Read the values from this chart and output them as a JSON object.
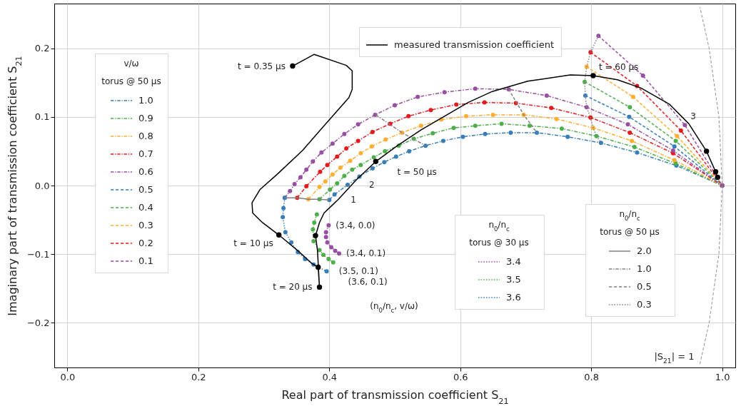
{
  "chart_data": {
    "type": "line",
    "xlabel": "Real part of transmission coefficient S$_{21}$",
    "ylabel": "Imaginary part of transmission coefficient S$_{21}$",
    "legend_title": "v/ω",
    "legend": "top left",
    "grid": true,
    "xlim": [
      -0.02,
      1.02
    ],
    "ylim": [
      -0.265,
      0.265
    ],
    "xticks": [
      {
        "value": 0,
        "label": "0.0"
      },
      0.2,
      0.4,
      0.6,
      0.8,
      {
        "value": 1,
        "label": "1.0"
      }
    ],
    "yticks": [
      {
        "value": -0.2,
        "label": "−0.2"
      },
      {
        "value": -0.1,
        "label": "−0.1"
      },
      {
        "value": 0,
        "label": "0.0"
      },
      0.1,
      0.2
    ],
    "annotations": [
      "torus @ 50 μs",
      "n$_{0}$/n$_{c}$",
      "torus @ 30 μs",
      "n$_{0}$/n$_{c}$",
      "torus @ 50 μs",
      "(n$_{0}$/n$_{c}$, v/ω)",
      {
        "text": "t = 0.35 μs",
        "x": 0.344,
        "y": 0.174
      },
      {
        "text": "t = 10 μs",
        "x": 0.323,
        "y": -0.072
      },
      {
        "text": "t = 20 μs",
        "x": 0.385,
        "y": -0.148
      },
      {
        "text": "t = 50 μs",
        "x": 0.471,
        "y": 0.035
      },
      {
        "text": "t = 60 μs",
        "x": 0.803,
        "y": 0.16
      },
      {
        "text": "1",
        "x": 0.4,
        "y": -0.021
      },
      {
        "text": "2",
        "x": 0.428,
        "y": 0.001
      },
      {
        "text": "3",
        "x": 0.943,
        "y": 0.088
      },
      {
        "text": "(3.4, 0.0)",
        "x": 0.399,
        "y": -0.058
      },
      {
        "text": "(3.4, 0.1)",
        "x": 0.415,
        "y": -0.099
      },
      {
        "text": "(3.5, 0.1)",
        "x": 0.406,
        "y": -0.112
      },
      {
        "text": "(3.6, 0.1)",
        "x": 0.396,
        "y": -0.125
      }
    ],
    "series": [
      {
        "name": "measured transmission coefficient",
        "color": "#000000",
        "marker": "none",
        "line_style": "solid",
        "x": [
          0.344,
          0.377,
          0.426,
          0.435,
          0.435,
          0.43,
          0.392,
          0.359,
          0.32,
          0.294,
          0.282,
          0.283,
          0.298,
          0.323,
          0.352,
          0.374,
          0.383,
          0.385,
          0.382,
          0.379,
          0.385,
          0.392,
          0.403,
          0.414,
          0.441,
          0.471,
          0.504,
          0.54,
          0.576,
          0.612,
          0.649,
          0.703,
          0.768,
          0.803,
          0.84,
          0.876,
          0.92,
          0.949,
          0.976,
          0.99,
          0.993
        ],
        "values": [
          0.174,
          0.191,
          0.175,
          0.167,
          0.14,
          0.128,
          0.087,
          0.051,
          0.016,
          -0.006,
          -0.025,
          -0.04,
          -0.054,
          -0.072,
          -0.095,
          -0.114,
          -0.119,
          -0.148,
          -0.095,
          -0.073,
          -0.054,
          -0.04,
          -0.03,
          -0.02,
          0.008,
          0.035,
          0.058,
          0.081,
          0.101,
          0.121,
          0.137,
          0.152,
          0.161,
          0.16,
          0.154,
          0.142,
          0.118,
          0.09,
          0.05,
          0.02,
          0.012
        ]
      },
      {
        "name": "1.0",
        "color": "#377eb8",
        "marker": "circle",
        "line_style": "dashdot",
        "x": [
          0.4,
          0.408,
          0.428,
          0.446,
          0.466,
          0.484,
          0.502,
          0.522,
          0.547,
          0.574,
          0.604,
          0.638,
          0.677,
          0.717,
          0.764,
          0.815,
          0.87,
          0.93,
          1.0
        ],
        "values": [
          -0.021,
          -0.013,
          0.001,
          0.013,
          0.025,
          0.034,
          0.042,
          0.05,
          0.058,
          0.065,
          0.071,
          0.075,
          0.077,
          0.077,
          0.071,
          0.062,
          0.048,
          0.029,
          0.0
        ]
      },
      {
        "name": "0.9",
        "color": "#4daf4a",
        "marker": "circle",
        "line_style": "dashdot",
        "x": [
          0.385,
          0.401,
          0.412,
          0.423,
          0.435,
          0.448,
          0.468,
          0.485,
          0.506,
          0.529,
          0.558,
          0.59,
          0.623,
          0.663,
          0.706,
          0.755,
          0.808,
          0.866,
          0.929,
          1.0
        ],
        "values": [
          -0.02,
          -0.006,
          0.003,
          0.014,
          0.023,
          0.03,
          0.041,
          0.05,
          0.058,
          0.068,
          0.076,
          0.084,
          0.087,
          0.09,
          0.087,
          0.083,
          0.072,
          0.056,
          0.032,
          0.0
        ]
      },
      {
        "name": "0.8",
        "color": "#fdae33",
        "marker": "circle",
        "line_style": "dashdot",
        "x": [
          0.368,
          0.385,
          0.394,
          0.405,
          0.417,
          0.432,
          0.448,
          0.465,
          0.486,
          0.511,
          0.54,
          0.571,
          0.609,
          0.65,
          0.697,
          0.747,
          0.803,
          0.862,
          0.927,
          1.0
        ],
        "values": [
          -0.02,
          -0.002,
          0.006,
          0.016,
          0.026,
          0.036,
          0.047,
          0.057,
          0.067,
          0.077,
          0.087,
          0.096,
          0.101,
          0.103,
          0.103,
          0.097,
          0.084,
          0.065,
          0.037,
          0.0
        ]
      },
      {
        "name": "0.7",
        "color": "#e41a1c",
        "marker": "circle",
        "line_style": "dashdot",
        "x": [
          0.351,
          0.365,
          0.386,
          0.397,
          0.412,
          0.426,
          0.444,
          0.466,
          0.493,
          0.521,
          0.555,
          0.594,
          0.637,
          0.685,
          0.739,
          0.799,
          0.859,
          0.925,
          1.0
        ],
        "values": [
          -0.018,
          -0.001,
          0.02,
          0.03,
          0.042,
          0.054,
          0.065,
          0.078,
          0.09,
          0.101,
          0.11,
          0.118,
          0.121,
          0.12,
          0.113,
          0.099,
          0.077,
          0.047,
          0.0
        ]
      },
      {
        "name": "0.6",
        "color": "#984ea3",
        "marker": "circle",
        "line_style": "dashdot",
        "x": [
          0.332,
          0.34,
          0.347,
          0.356,
          0.365,
          0.375,
          0.388,
          0.405,
          0.423,
          0.444,
          0.47,
          0.5,
          0.535,
          0.576,
          0.623,
          0.674,
          0.732,
          0.793,
          0.856,
          0.925,
          1.0
        ],
        "values": [
          -0.018,
          -0.008,
          0.002,
          0.012,
          0.023,
          0.035,
          0.048,
          0.061,
          0.075,
          0.089,
          0.103,
          0.117,
          0.129,
          0.136,
          0.141,
          0.14,
          0.131,
          0.114,
          0.089,
          0.051,
          0.0
        ]
      },
      {
        "name": "0.5",
        "color": "#377eb8",
        "marker": "circle",
        "line_style": "dashed",
        "x": [
          0.791,
          0.858,
          0.927,
          1.0
        ],
        "values": [
          0.131,
          0.1,
          0.057,
          0.0
        ]
      },
      {
        "name": "0.4",
        "color": "#4daf4a",
        "marker": "circle",
        "line_style": "dashed",
        "x": [
          0.79,
          0.859,
          0.929,
          1.0
        ],
        "values": [
          0.151,
          0.114,
          0.065,
          0.0
        ]
      },
      {
        "name": "0.3",
        "color": "#fdae33",
        "marker": "circle",
        "line_style": "dashed",
        "x": [
          0.793,
          0.864,
          0.931,
          1.0
        ],
        "values": [
          0.173,
          0.129,
          0.072,
          0.0
        ]
      },
      {
        "name": "0.2",
        "color": "#e41a1c",
        "marker": "circle",
        "line_style": "dashed",
        "x": [
          0.799,
          0.87,
          0.937,
          1.0
        ],
        "values": [
          0.194,
          0.145,
          0.08,
          0.0
        ]
      },
      {
        "name": "0.1",
        "color": "#984ea3",
        "marker": "circle",
        "line_style": "dashed",
        "x": [
          0.811,
          0.879,
          0.943,
          1.0
        ],
        "values": [
          0.218,
          0.16,
          0.088,
          0.0
        ]
      },
      {
        "name": "3.4",
        "color": "#984ea3",
        "marker": "circle",
        "line_style": "dotted",
        "x": [
          0.399,
          0.395,
          0.395,
          0.397,
          0.403,
          0.409,
          0.415
        ],
        "values": [
          -0.058,
          -0.068,
          -0.075,
          -0.083,
          -0.09,
          -0.095,
          -0.099
        ]
      },
      {
        "name": "3.5",
        "color": "#4daf4a",
        "marker": "circle",
        "line_style": "dotted",
        "x": [
          0.381,
          0.377,
          0.375,
          0.376,
          0.385,
          0.391,
          0.399,
          0.406
        ],
        "values": [
          -0.042,
          -0.054,
          -0.064,
          -0.081,
          -0.094,
          -0.101,
          -0.107,
          -0.112
        ]
      },
      {
        "name": "3.6",
        "color": "#377eb8",
        "marker": "circle",
        "line_style": "dotted",
        "x": [
          0.332,
          0.33,
          0.329,
          0.333,
          0.342,
          0.352,
          0.363,
          0.376,
          0.396
        ],
        "values": [
          -0.018,
          -0.033,
          -0.046,
          -0.068,
          -0.083,
          -0.097,
          -0.107,
          -0.115,
          -0.125
        ]
      },
      {
        "name": "2.0",
        "color": "#808080",
        "marker": "none",
        "line_style": "solid",
        "x": [
          0.332,
          0.351,
          0.368,
          0.385,
          0.4
        ],
        "values": [
          -0.018,
          -0.018,
          -0.02,
          -0.02,
          -0.021
        ]
      },
      {
        "name": "1.0",
        "color": "#808080",
        "marker": "none",
        "line_style": "dashdot",
        "x": [
          0.471,
          0.511,
          0.547
        ],
        "values": [
          0.103,
          0.077,
          0.058
        ]
      },
      {
        "name": "0.5",
        "color": "#808080",
        "marker": "none",
        "line_style": "dashed",
        "x": [
          0.674,
          0.697,
          0.717
        ],
        "values": [
          0.14,
          0.103,
          0.077
        ]
      },
      {
        "name": "0.3",
        "color": "#808080",
        "marker": "none",
        "line_style": "dotted",
        "x": [
          0.811,
          0.799,
          0.793,
          0.79,
          0.791,
          0.793,
          0.799,
          0.803,
          0.808,
          0.815
        ],
        "values": [
          0.218,
          0.194,
          0.173,
          0.151,
          0.131,
          0.114,
          0.099,
          0.084,
          0.072,
          0.062
        ]
      },
      {
        "name": "|S$_{21}$| = 1",
        "color": "#909090",
        "marker": "none",
        "line_style": "dashed",
        "x": [
          0.966,
          0.98,
          0.995,
          1.0,
          0.995,
          0.98,
          0.966
        ],
        "values": [
          -0.26,
          -0.2,
          -0.1,
          0.0,
          0.1,
          0.2,
          0.26
        ]
      },
      {
        "type": "scatter",
        "color": "#000000",
        "marker": "circle",
        "x": [
          0.344,
          0.323,
          0.383,
          0.385,
          0.379,
          0.471,
          0.803,
          0.976,
          0.99,
          0.993
        ],
        "values": [
          0.174,
          -0.072,
          -0.119,
          -0.148,
          -0.073,
          0.035,
          0.16,
          0.05,
          0.02,
          0.012
        ]
      }
    ]
  }
}
